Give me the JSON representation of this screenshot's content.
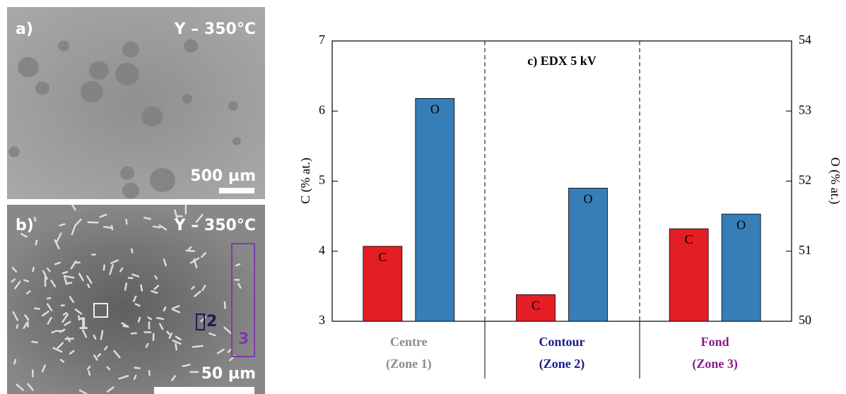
{
  "images": {
    "a": {
      "label": "a)",
      "sample": "Y – 350°C",
      "scale": "500 µm"
    },
    "b": {
      "label": "b)",
      "sample": "Y – 350°C",
      "scale": "50 µm",
      "zones": [
        "1",
        "2",
        "3"
      ]
    }
  },
  "chart_data": {
    "type": "bar",
    "title": "c) EDX 5 kV",
    "categories": [
      "Centre",
      "Contour",
      "Fond"
    ],
    "category_sublabels": [
      "(Zone 1)",
      "(Zone 2)",
      "(Zone 3)"
    ],
    "category_colors": [
      "#8c8c8c",
      "#1a1a8c",
      "#8c1a8c"
    ],
    "ylabel": "C (% at.)",
    "y2label": "O (% at.)",
    "ylim": [
      3,
      7
    ],
    "yticks": [
      3,
      4,
      5,
      6,
      7
    ],
    "y2lim": [
      50,
      54
    ],
    "y2ticks": [
      50,
      51,
      52,
      53,
      54
    ],
    "series": [
      {
        "name": "C",
        "color": "#e31e24",
        "values": [
          4.07,
          3.38,
          4.32
        ]
      },
      {
        "name": "O",
        "color": "#377eb8",
        "axis": "y2",
        "values": [
          53.18,
          51.9,
          51.53
        ]
      }
    ]
  }
}
